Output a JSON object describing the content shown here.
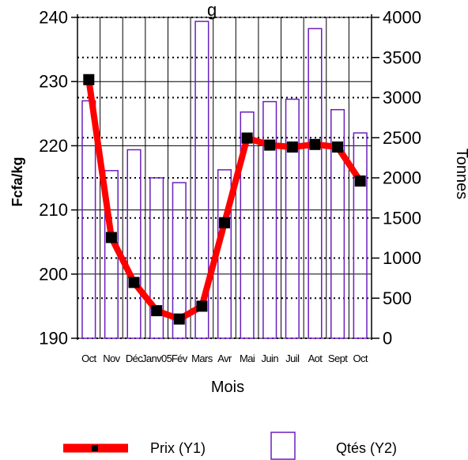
{
  "chart_data": {
    "type": "bar",
    "title": "g",
    "xlabel": "Mois",
    "ylabel_left": "Fcfa/kg",
    "ylabel_right": "Tonnes",
    "categories": [
      "Oct",
      "Nov",
      "Déc",
      "Janv05",
      "Fév",
      "Mars",
      "Avr",
      "Mai",
      "Juin",
      "Juil",
      "Aot",
      "Sept",
      "Oct"
    ],
    "y1_range": [
      190,
      240
    ],
    "y1_ticks": [
      "190",
      "200",
      "210",
      "220",
      "230",
      "240"
    ],
    "y2_range": [
      0,
      4000
    ],
    "y2_ticks": [
      "0",
      "500",
      "1000",
      "1500",
      "2000",
      "2500",
      "3000",
      "3500",
      "4000"
    ],
    "series": [
      {
        "name": "Prix (Y1)",
        "axis": "left",
        "type": "line",
        "color": "#ff0000",
        "marker_color": "#000000",
        "values": [
          230.3,
          205.7,
          198.7,
          194.3,
          193.0,
          195.0,
          208.0,
          221.2,
          220.1,
          219.8,
          220.2,
          219.8,
          214.5
        ]
      },
      {
        "name": "Qtés (Y2)",
        "axis": "right",
        "type": "bar",
        "color": "#6a1fbf",
        "values": [
          2960,
          2090,
          2350,
          2000,
          1940,
          3950,
          2100,
          2820,
          2950,
          2980,
          3860,
          2850,
          2560
        ]
      }
    ],
    "gridlines_left": "solid",
    "gridlines_right": "dotted",
    "legend_position": "bottom"
  }
}
